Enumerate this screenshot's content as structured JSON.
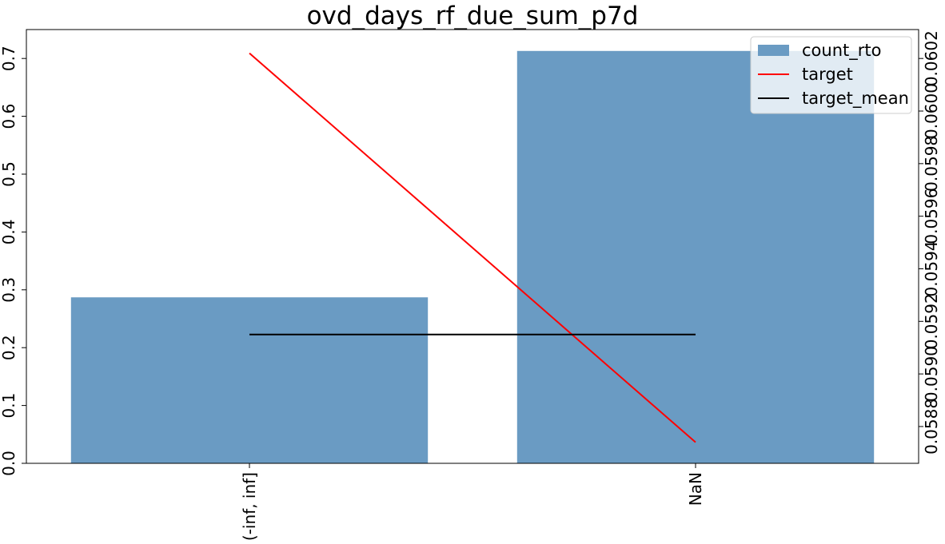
{
  "chart_data": {
    "type": "bar",
    "title": "ovd_days_rf_due_sum_p7d",
    "categories": [
      "(-inf, inf]",
      "NaN"
    ],
    "series": [
      {
        "name": "count_rto",
        "kind": "bar",
        "axis": "left",
        "values": [
          0.287,
          0.713
        ],
        "color": "#6a9bc3"
      },
      {
        "name": "target",
        "kind": "line",
        "axis": "right",
        "values": [
          0.06022,
          0.05874
        ],
        "color": "#ff0000"
      },
      {
        "name": "target_mean",
        "kind": "line",
        "axis": "right",
        "values": [
          0.05915,
          0.05915
        ],
        "color": "#000000"
      }
    ],
    "left_axis": {
      "ylim": [
        0,
        0.75
      ],
      "ticks": [
        0.0,
        0.1,
        0.2,
        0.3,
        0.4,
        0.5,
        0.6,
        0.7
      ],
      "tick_labels": [
        "0.0",
        "0.1",
        "0.2",
        "0.3",
        "0.4",
        "0.5",
        "0.6",
        "0.7"
      ]
    },
    "right_axis": {
      "ylim": [
        0.05866,
        0.06031
      ],
      "ticks": [
        0.0588,
        0.059,
        0.0592,
        0.0594,
        0.0596,
        0.0598,
        0.06,
        0.0602
      ],
      "tick_labels": [
        "0.0588",
        "0.0590",
        "0.0592",
        "0.0594",
        "0.0596",
        "0.0598",
        "0.0600",
        "0.0602"
      ]
    },
    "legend": {
      "position": "top-right",
      "entries": [
        "count_rto",
        "target",
        "target_mean"
      ]
    },
    "grid": false
  }
}
